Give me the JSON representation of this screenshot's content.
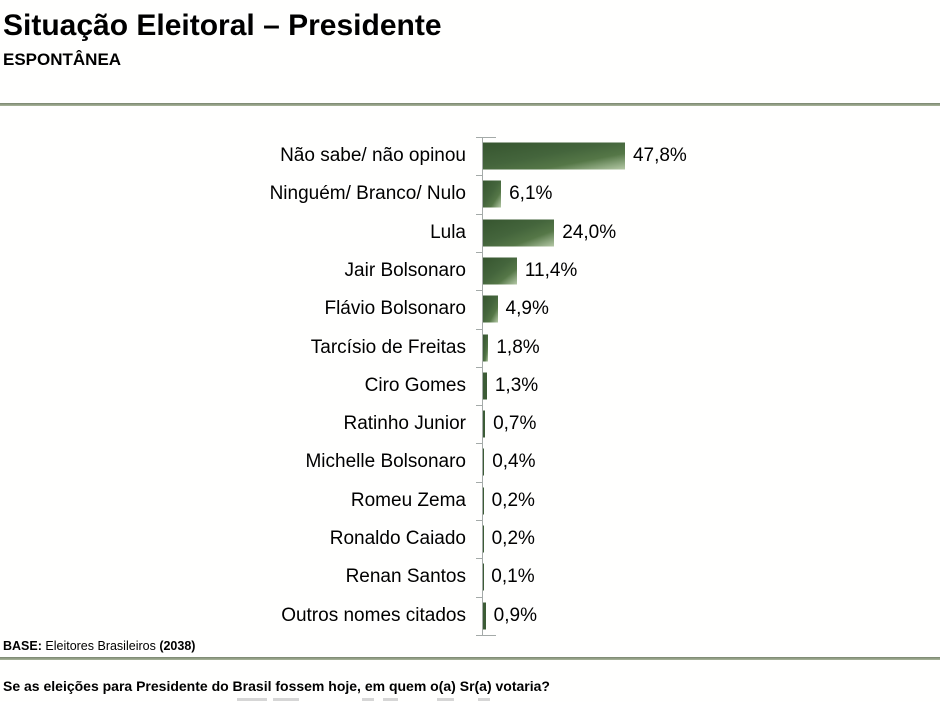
{
  "header": {
    "title": "Situação Eleitoral – Presidente",
    "subtitle": "ESPONTÂNEA"
  },
  "chart_data": {
    "type": "bar",
    "orientation": "horizontal",
    "title": "Situação Eleitoral – Presidente",
    "subtitle": "ESPONTÂNEA",
    "xlabel": "",
    "ylabel": "",
    "xlim": [
      0,
      50
    ],
    "grid": false,
    "legend": false,
    "bar_color_dark": "#3c5c36",
    "bar_color_light": "#b5c8a6",
    "categories": [
      "Não sabe/ não opinou",
      "Ninguém/ Branco/ Nulo",
      "Lula",
      "Jair Bolsonaro",
      "Flávio Bolsonaro",
      "Tarcísio de Freitas",
      "Ciro Gomes",
      "Ratinho Junior",
      "Michelle Bolsonaro",
      "Romeu Zema",
      "Ronaldo Caiado",
      "Renan Santos",
      "Outros nomes citados"
    ],
    "values": [
      47.8,
      6.1,
      24.0,
      11.4,
      4.9,
      1.8,
      1.3,
      0.7,
      0.4,
      0.2,
      0.2,
      0.1,
      0.9
    ],
    "value_labels": [
      "47,8%",
      "6,1%",
      "24,0%",
      "11,4%",
      "4,9%",
      "1,8%",
      "1,3%",
      "0,7%",
      "0,4%",
      "0,2%",
      "0,2%",
      "0,1%",
      "0,9%"
    ]
  },
  "footer": {
    "base_prefix": "BASE:",
    "base_text": " Eleitores Brasileiros ",
    "base_count": "(2038)",
    "question": "Se as eleições para Presidente do Brasil fossem hoje, em quem o(a) Sr(a) votaria?"
  }
}
